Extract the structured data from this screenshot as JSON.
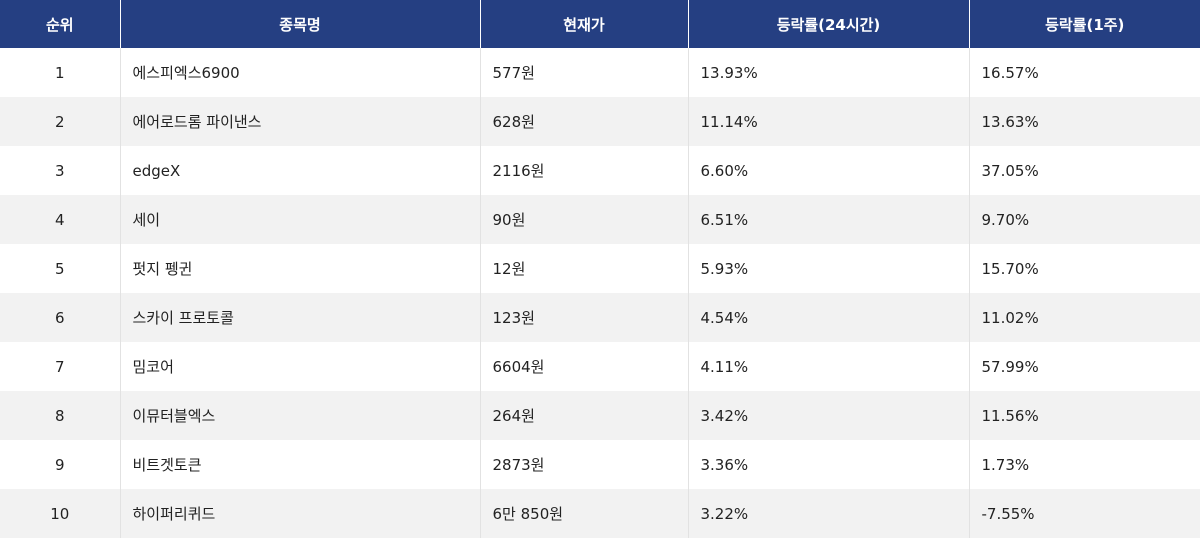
{
  "table": {
    "headers": [
      "순위",
      "종목명",
      "현재가",
      "등락률(24시간)",
      "등락률(1주)"
    ],
    "rows": [
      [
        "1",
        "에스피엑스6900",
        "577원",
        "13.93%",
        "16.57%"
      ],
      [
        "2",
        "에어로드롬 파이낸스",
        "628원",
        "11.14%",
        "13.63%"
      ],
      [
        "3",
        "edgeX",
        "2116원",
        "6.60%",
        "37.05%"
      ],
      [
        "4",
        "세이",
        "90원",
        "6.51%",
        "9.70%"
      ],
      [
        "5",
        "펏지 펭귄",
        "12원",
        "5.93%",
        "15.70%"
      ],
      [
        "6",
        "스카이 프로토콜",
        "123원",
        "4.54%",
        "11.02%"
      ],
      [
        "7",
        "밈코어",
        "6604원",
        "4.11%",
        "57.99%"
      ],
      [
        "8",
        "이뮤터블엑스",
        "264원",
        "3.42%",
        "11.56%"
      ],
      [
        "9",
        "비트겟토큰",
        "2873원",
        "3.36%",
        "1.73%"
      ],
      [
        "10",
        "하이퍼리퀴드",
        "6만 850원",
        "3.22%",
        "-7.55%"
      ]
    ]
  }
}
